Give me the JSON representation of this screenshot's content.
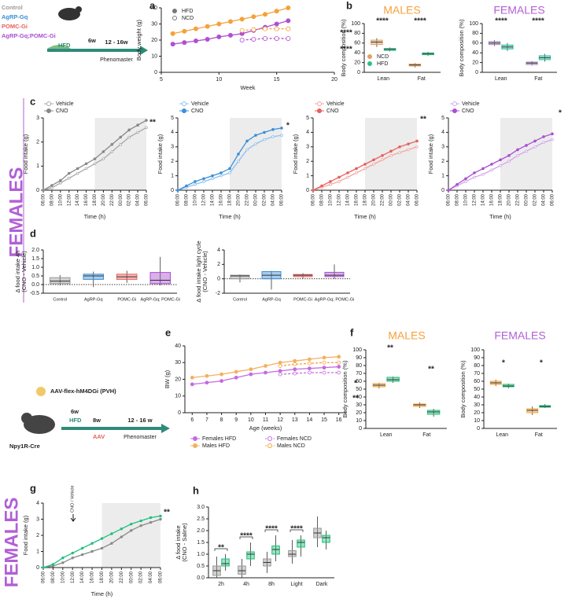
{
  "schematic_top": {
    "groups": [
      "Control",
      "AgRP-Gq",
      "POMC-Gi",
      "AgRP-Gq;POMC-Gi"
    ],
    "group_colors": [
      "#9a9a9a",
      "#3a8fd9",
      "#e8605a",
      "#a94fd0"
    ],
    "age": "6w",
    "diet": "HFD",
    "window": "12 - 16w",
    "system": "Phenomaster"
  },
  "schematic_bottom": {
    "virus": "AAV-flex-hM4DGi (PVH)",
    "strain": "Npy1R-Cre",
    "age": "6w",
    "diet": "HFD",
    "age2": "8w",
    "surgery": "AAV",
    "window": "12 - 16 w",
    "system": "Phenomaster"
  },
  "side_labels": [
    "FEMALES",
    "FEMALES"
  ],
  "chart_data": [
    {
      "type": "line",
      "panel": "a",
      "x": [
        6,
        7,
        8,
        9,
        10,
        11,
        12,
        13,
        14,
        15,
        16
      ],
      "xlim": [
        5,
        20
      ],
      "xticks": [
        5,
        10,
        15,
        20
      ],
      "xlabel": "Week",
      "ylabel": "Body weight (g)",
      "ylim": [
        0,
        40
      ],
      "yticks": [
        0,
        10,
        20,
        30,
        40
      ],
      "series": [
        {
          "color": "#f5a13a",
          "values": [
            24,
            25.5,
            27,
            28.5,
            30,
            31.5,
            33,
            34.5,
            36,
            38,
            40
          ]
        },
        {
          "color": "#b04fd4",
          "values": [
            17.5,
            18.5,
            19.5,
            20.5,
            22,
            23,
            24,
            26,
            28,
            30,
            32
          ]
        },
        {
          "color": "#f5a13a",
          "dashed": true,
          "values": [
            null,
            null,
            null,
            null,
            null,
            null,
            26,
            26.5,
            27,
            27,
            27
          ]
        },
        {
          "color": "#b04fd4",
          "dashed": true,
          "values": [
            null,
            null,
            null,
            null,
            null,
            null,
            20,
            20.5,
            21,
            21,
            21
          ]
        }
      ],
      "legend": [
        {
          "name": "HFD",
          "marker": "filled"
        },
        {
          "name": "NCD",
          "marker": "open"
        }
      ],
      "legend_color": "#777777",
      "annotations": [
        "****",
        "****"
      ]
    },
    {
      "type": "box",
      "panel": "b",
      "title": "MALES",
      "title_color": "#f5a13a",
      "categories": [
        "Lean",
        "Fat"
      ],
      "ylabel": "Body composition (%)",
      "ylim": [
        0,
        100
      ],
      "yticks": [
        0,
        20,
        40,
        60,
        80,
        100
      ],
      "series": [
        {
          "name": "NCD",
          "color": "#e0a060",
          "boxes": [
            [
              52,
              57,
              62,
              66,
              70
            ],
            [
              10,
              13,
              15,
              17,
              19
            ]
          ]
        },
        {
          "name": "HFD",
          "color": "#2bbf8a",
          "boxes": [
            [
              43,
              45,
              47,
              49,
              51
            ],
            [
              34,
              36,
              38,
              40,
              42
            ]
          ]
        }
      ],
      "annotations": [
        "****",
        "****"
      ]
    },
    {
      "type": "box",
      "title": "FEMALES",
      "title_color": "#b160d6",
      "categories": [
        "Lean",
        "Fat"
      ],
      "ylabel": "Body composition (%)",
      "ylim": [
        0,
        100
      ],
      "yticks": [
        0,
        20,
        40,
        60,
        80,
        100
      ],
      "series": [
        {
          "color": "#a88bc0",
          "boxes": [
            [
              54,
              57,
              60,
              63,
              66
            ],
            [
              14,
              16,
              19,
              21,
              23
            ]
          ]
        },
        {
          "color": "#2bbfa0",
          "boxes": [
            [
              44,
              48,
              52,
              56,
              60
            ],
            [
              22,
              26,
              30,
              34,
              38
            ]
          ]
        }
      ],
      "annotations": [
        "****",
        "****"
      ]
    },
    {
      "type": "line",
      "panel": "c",
      "categories": [
        "06:00",
        "08:00",
        "10:00",
        "12:00",
        "14:00",
        "16:00",
        "18:00",
        "20:00",
        "22:00",
        "00:00",
        "02:00",
        "04:00",
        "06:00"
      ],
      "xlabel": "Time (h)",
      "ylabel": "Food intake (g)",
      "ylim": [
        0,
        3
      ],
      "yticks": [
        0,
        1,
        2,
        3
      ],
      "series": [
        {
          "name": "Vehicle",
          "color": "#a8a8a8",
          "marker": "open",
          "values": [
            0,
            0.1,
            0.3,
            0.5,
            0.7,
            0.9,
            1.1,
            1.3,
            1.6,
            1.9,
            2.2,
            2.4,
            2.6
          ]
        },
        {
          "name": "CNO",
          "color": "#888888",
          "values": [
            0,
            0.2,
            0.4,
            0.7,
            0.9,
            1.1,
            1.3,
            1.6,
            1.9,
            2.2,
            2.5,
            2.7,
            2.9
          ]
        }
      ],
      "annotations": [
        "**"
      ]
    },
    {
      "type": "line",
      "categories": [
        "06:00",
        "08:00",
        "10:00",
        "12:00",
        "14:00",
        "16:00",
        "18:00",
        "20:00",
        "22:00",
        "00:00",
        "02:00",
        "04:00",
        "06:00"
      ],
      "xlabel": "Time (h)",
      "ylabel": "Food intake (g)",
      "ylim": [
        0,
        5
      ],
      "yticks": [
        0,
        1,
        2,
        3,
        4,
        5
      ],
      "series": [
        {
          "name": "Vehicle",
          "color": "#8fc0ee",
          "marker": "open",
          "values": [
            0,
            0.2,
            0.4,
            0.6,
            0.8,
            1.0,
            1.2,
            2.0,
            2.8,
            3.2,
            3.5,
            3.7,
            3.8
          ]
        },
        {
          "name": "CNO",
          "color": "#3a8fd9",
          "values": [
            0,
            0.3,
            0.6,
            0.8,
            1.0,
            1.2,
            1.5,
            2.5,
            3.4,
            3.8,
            4.0,
            4.2,
            4.3
          ]
        }
      ],
      "annotations": [
        "*"
      ]
    },
    {
      "type": "line",
      "categories": [
        "06:00",
        "08:00",
        "10:00",
        "12:00",
        "14:00",
        "16:00",
        "18:00",
        "20:00",
        "22:00",
        "00:00",
        "02:00",
        "04:00",
        "06:00"
      ],
      "xlabel": "Time (h)",
      "ylabel": "Food intake (g)",
      "ylim": [
        0,
        5
      ],
      "yticks": [
        0,
        1,
        2,
        3,
        4,
        5
      ],
      "series": [
        {
          "name": "Vehicle",
          "color": "#f2a6a2",
          "marker": "open",
          "values": [
            0,
            0.2,
            0.4,
            0.6,
            0.9,
            1.2,
            1.5,
            1.8,
            2.1,
            2.4,
            2.6,
            2.8,
            3.0
          ]
        },
        {
          "name": "CNO",
          "color": "#e8605a",
          "values": [
            0,
            0.3,
            0.6,
            0.9,
            1.2,
            1.5,
            1.8,
            2.1,
            2.4,
            2.7,
            3.0,
            3.2,
            3.4
          ]
        }
      ],
      "annotations": [
        "**"
      ]
    },
    {
      "type": "line",
      "categories": [
        "06:00",
        "08:00",
        "10:00",
        "12:00",
        "14:00",
        "16:00",
        "18:00",
        "20:00",
        "22:00",
        "00:00",
        "02:00",
        "04:00",
        "06:00"
      ],
      "xlabel": "Time (h)",
      "ylabel": "Food intake (g)",
      "ylim": [
        0,
        5
      ],
      "yticks": [
        0,
        1,
        2,
        3,
        4,
        5
      ],
      "series": [
        {
          "name": "Vehicle",
          "color": "#d3a6ea",
          "marker": "open",
          "values": [
            0,
            0.3,
            0.6,
            0.9,
            1.1,
            1.4,
            1.7,
            2.0,
            2.4,
            2.7,
            3.0,
            3.3,
            3.5
          ]
        },
        {
          "name": "CNO",
          "color": "#a94fd0",
          "values": [
            0,
            0.4,
            0.8,
            1.2,
            1.5,
            1.8,
            2.1,
            2.4,
            2.8,
            3.1,
            3.4,
            3.7,
            3.9
          ]
        }
      ],
      "annotations": [
        "*"
      ]
    },
    {
      "type": "box",
      "panel": "d",
      "categories": [
        "Control",
        "AgRP-Gq",
        "POMC-Gi",
        "AgRP-Gq; POMC-Gi"
      ],
      "ylabel": [
        "Δ food intake 4h",
        "(CNO - Vehicle)"
      ],
      "ylim": [
        -0.5,
        2.0
      ],
      "yticks": [
        -0.5,
        {
          "value": 0,
          "label": "0.0"
        },
        0.5,
        {
          "value": 1,
          "label": "1.0"
        },
        1.5,
        {
          "value": 2,
          "label": "2.0"
        }
      ],
      "zero_line": true,
      "series": [
        {
          "colors": [
            "#9a9a9a",
            "#3a8fd9",
            "#e8605a",
            "#a94fd0"
          ],
          "boxes": [
            [
              -0.05,
              0.05,
              0.2,
              0.4,
              0.55
            ],
            [
              -0.15,
              0.3,
              0.5,
              0.6,
              0.75
            ],
            [
              0.1,
              0.3,
              0.45,
              0.6,
              0.8
            ],
            [
              -0.05,
              0.05,
              0.25,
              0.7,
              1.6
            ]
          ]
        }
      ]
    },
    {
      "type": "box",
      "categories": [
        "Control",
        "AgRP-Gq",
        "POMC-Gi",
        "AgRP-Gq; POMC-Gi"
      ],
      "ylabel": [
        "Δ food intake light cycle",
        "(CNO - Vehicle)"
      ],
      "ylim": [
        -2,
        4
      ],
      "yticks": [
        -2,
        0,
        2,
        4
      ],
      "zero_line": true,
      "series": [
        {
          "colors": [
            "#9a9a9a",
            "#3a8fd9",
            "#e8605a",
            "#a94fd0"
          ],
          "boxes": [
            [
              -0.5,
              0.0,
              0.4,
              0.5,
              0.6
            ],
            [
              -1.5,
              0.0,
              0.5,
              1.0,
              1.1
            ],
            [
              0.0,
              0.3,
              0.5,
              0.6,
              0.8
            ],
            [
              0.0,
              0.3,
              0.5,
              0.9,
              2.0
            ]
          ]
        }
      ]
    },
    {
      "type": "line",
      "panel": "e",
      "x": [
        6,
        7,
        8,
        9,
        10,
        11,
        12,
        13,
        14,
        15,
        16
      ],
      "xlim": [
        5.5,
        16.5
      ],
      "xticks": [
        6,
        7,
        8,
        9,
        10,
        11,
        12,
        13,
        14,
        15,
        16
      ],
      "xlabel": "Age (weeks)",
      "ylabel": "BW (g)",
      "ylim": [
        0,
        40
      ],
      "yticks": [
        0,
        10,
        20,
        30,
        40
      ],
      "series": [
        {
          "name": "Females  HFD",
          "color": "#c46be0",
          "values": [
            17,
            18,
            19,
            21,
            23,
            24,
            25,
            26,
            26.5,
            27,
            27.5
          ]
        },
        {
          "name": "Females  NCD",
          "color": "#c46be0",
          "dashed": true,
          "values": [
            null,
            null,
            null,
            null,
            null,
            null,
            23,
            23.5,
            24,
            24,
            24
          ]
        },
        {
          "name": "Males HFD",
          "color": "#f5b060",
          "values": [
            21,
            22,
            23,
            24.5,
            26,
            28,
            30,
            31,
            32,
            33,
            33.5
          ]
        },
        {
          "name": "Males  NCD",
          "color": "#f5a13a",
          "dashed": true,
          "values": [
            null,
            null,
            null,
            null,
            null,
            null,
            28,
            29,
            29.5,
            30,
            30
          ]
        }
      ],
      "annotations": [
        "*",
        "**"
      ]
    },
    {
      "type": "box",
      "panel": "f",
      "title": "MALES",
      "title_color": "#f5a13a",
      "categories": [
        "Lean",
        "Fat"
      ],
      "ylabel": "Body composition (%)",
      "ylim": [
        0,
        100
      ],
      "yticks": [
        0,
        10,
        20,
        30,
        40,
        50,
        60,
        70,
        80,
        90,
        100
      ],
      "series": [
        {
          "color": "#f5a13a",
          "boxes": [
            [
              51,
              53,
              55,
              57,
              58
            ],
            [
              26,
              28,
              30,
              31,
              33
            ]
          ]
        },
        {
          "color": "#1fbf7a",
          "boxes": [
            [
              58,
              60,
              62,
              65,
              66
            ],
            [
              15,
              18,
              21,
              23,
              25
            ]
          ]
        }
      ],
      "annotations": [
        "**",
        "**"
      ]
    },
    {
      "type": "box",
      "title": "FEMALES",
      "title_color": "#b160d6",
      "categories": [
        "Lean",
        "Fat"
      ],
      "ylabel": "Body composition (%)",
      "ylim": [
        0,
        100
      ],
      "yticks": [
        0,
        10,
        20,
        30,
        40,
        50,
        60,
        70,
        80,
        90,
        100
      ],
      "series": [
        {
          "color": "#f5a13a",
          "boxes": [
            [
              54,
              56,
              58,
              60,
              62
            ],
            [
              17,
              20,
              23,
              25,
              28
            ]
          ]
        },
        {
          "color": "#1fbf7a",
          "boxes": [
            [
              51,
              53,
              54,
              56,
              57
            ],
            [
              26,
              27,
              28,
              29,
              31
            ]
          ]
        }
      ],
      "annotations": [
        "*",
        "*"
      ]
    },
    {
      "type": "line",
      "panel": "g",
      "categories": [
        "06:00",
        "08:00",
        "10:00",
        "12:00",
        "14:00",
        "16:00",
        "18:00",
        "20:00",
        "22:00",
        "00:00",
        "02:00",
        "04:00",
        "06:00"
      ],
      "xlabel": "Time (h)",
      "ylabel": "Food intake (g)",
      "ylim": [
        0,
        4
      ],
      "yticks": [
        0,
        1,
        2,
        3,
        4
      ],
      "series": [
        {
          "color": "#8a8a8a",
          "values": [
            0,
            0.1,
            0.3,
            0.6,
            0.8,
            1.0,
            1.2,
            1.5,
            1.9,
            2.3,
            2.6,
            2.8,
            3.0
          ]
        },
        {
          "color": "#1fbf7a",
          "values": [
            0,
            0.2,
            0.6,
            0.9,
            1.2,
            1.5,
            1.8,
            2.1,
            2.4,
            2.7,
            2.9,
            3.1,
            3.2
          ]
        }
      ],
      "annotations": [
        "**",
        "CNO / Vehicle"
      ]
    },
    {
      "type": "box",
      "panel": "h",
      "categories": [
        "2h",
        "4h",
        "8h",
        "Light",
        "Dark"
      ],
      "ylabel": [
        "Δ food intake",
        "(CNO - Saline)"
      ],
      "ylim": [
        0,
        3
      ],
      "yticks": [
        {
          "value": 0,
          "label": "0.0"
        },
        0.5,
        {
          "value": 1,
          "label": "1.0"
        },
        1.5,
        {
          "value": 2,
          "label": "2.0"
        },
        2.5,
        {
          "value": 3,
          "label": "3.0"
        }
      ],
      "series": [
        {
          "color": "#999999",
          "boxes": [
            [
              0,
              0.1,
              0.3,
              0.5,
              0.9
            ],
            [
              0,
              0.15,
              0.3,
              0.5,
              0.8
            ],
            [
              0.2,
              0.5,
              0.65,
              0.8,
              1.1
            ],
            [
              0.6,
              0.9,
              1.0,
              1.15,
              1.6
            ],
            [
              1.3,
              1.7,
              1.9,
              2.1,
              2.6
            ]
          ]
        },
        {
          "color": "#1fbf7a",
          "boxes": [
            [
              0.3,
              0.5,
              0.6,
              0.8,
              1.0
            ],
            [
              0.5,
              0.8,
              1.0,
              1.1,
              1.5
            ],
            [
              0.7,
              1.0,
              1.2,
              1.35,
              1.8
            ],
            [
              0.9,
              1.3,
              1.5,
              1.6,
              1.8
            ],
            [
              1.2,
              1.5,
              1.7,
              1.8,
              2.0
            ]
          ]
        }
      ],
      "annotations": [
        "**",
        "****",
        "****",
        "****"
      ]
    }
  ]
}
